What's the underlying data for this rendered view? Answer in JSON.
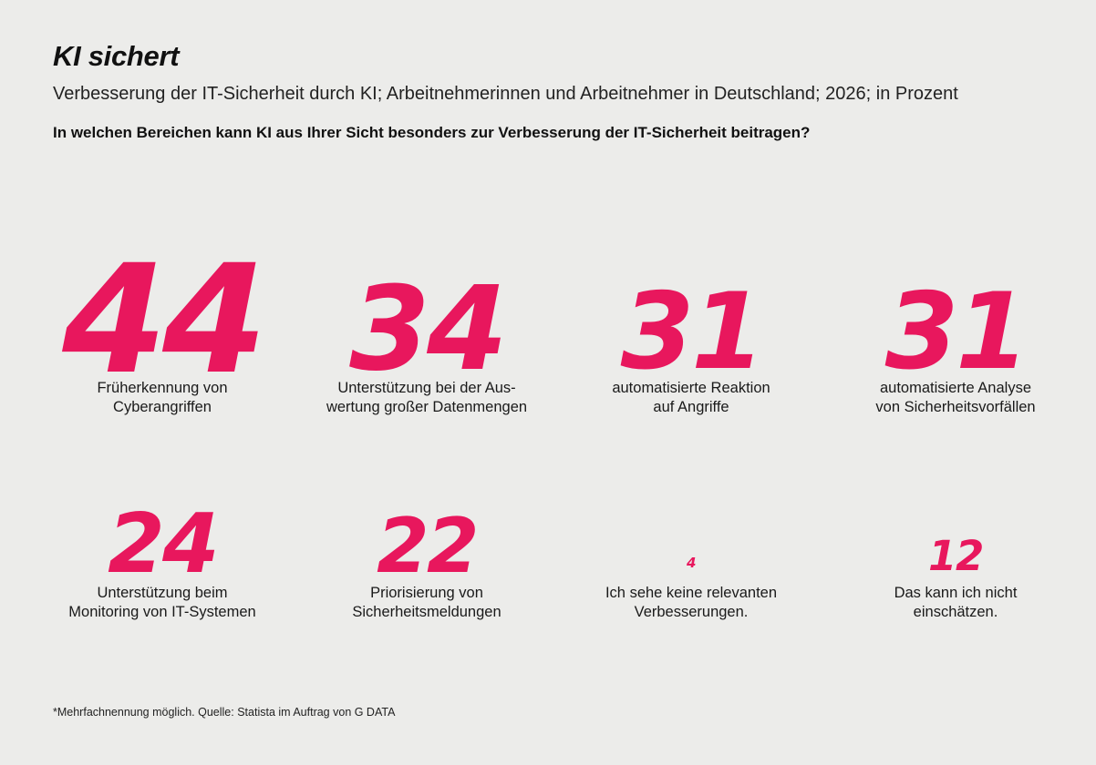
{
  "title": "KI sichert",
  "subtitle": "Verbesserung der IT-Sicherheit durch KI; Arbeitnehmerinnen und Arbeitnehmer in Deutschland; 2026; in Prozent",
  "question": "In welchen Bereichen kann KI aus Ihrer Sicht besonders zur Verbesserung der IT-Sicherheit beitragen?",
  "footnote": "*Mehrfachnennung möglich. Quelle: Statista im Auftrag von G DATA",
  "colors": {
    "accent": "#e8175d",
    "background": "#ececea",
    "text": "#111111"
  },
  "chart_data": {
    "type": "table",
    "title": "KI sichert",
    "subtitle": "Verbesserung der IT-Sicherheit durch KI; Arbeitnehmerinnen und Arbeitnehmer in Deutschland; 2026; in Prozent",
    "unit": "Prozent",
    "categories": [
      "Früherkennung von\nCyberangriffen",
      "Unterstützung bei der Aus-\nwertung großer Datenmengen",
      "automatisierte Reaktion\nauf Angriffe",
      "automatisierte Analyse\nvon Sicherheitsvorfällen",
      "Unterstützung beim\nMonitoring von IT-Systemen",
      "Priorisierung von\nSicherheitsmeldungen",
      "Ich sehe keine relevanten\nVerbesserungen.",
      "Das kann ich nicht\neinschätzen."
    ],
    "values": [
      44,
      34,
      31,
      31,
      24,
      22,
      4,
      12
    ]
  }
}
